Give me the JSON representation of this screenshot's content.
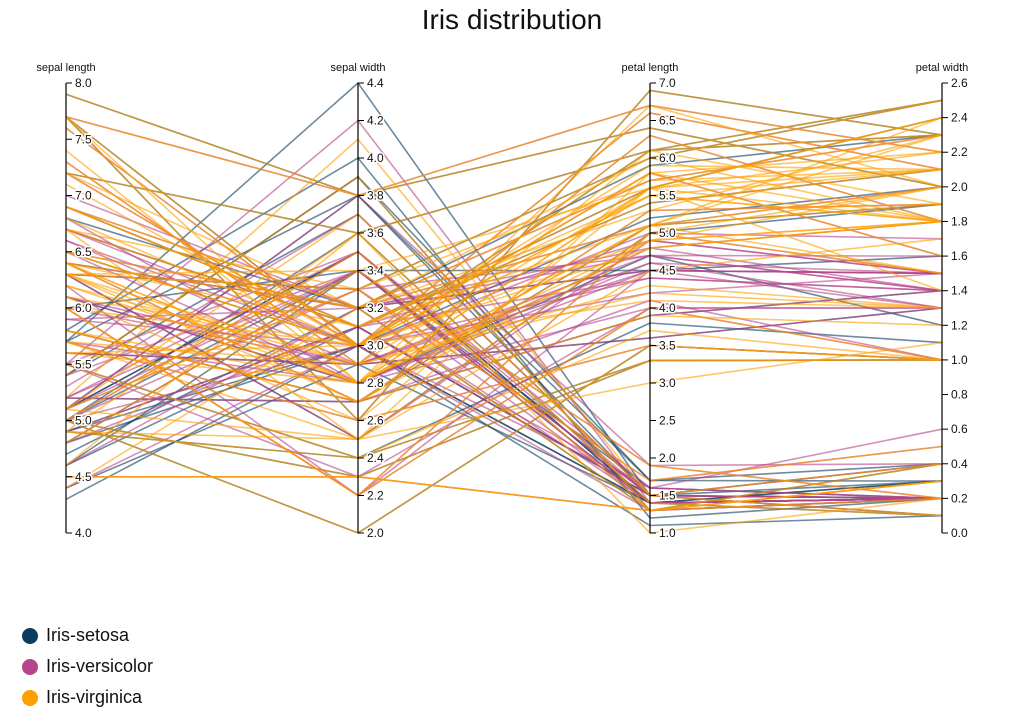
{
  "chart_data": {
    "type": "parallel-coordinates",
    "title": "Iris distribution",
    "axes": [
      {
        "key": "sepal_length",
        "label": "sepal length",
        "range": [
          4.0,
          8.0
        ],
        "ticks": [
          4.0,
          4.5,
          5.0,
          5.5,
          6.0,
          6.5,
          7.0,
          7.5,
          8.0
        ]
      },
      {
        "key": "sepal_width",
        "label": "sepal width",
        "range": [
          2.0,
          4.4
        ],
        "ticks": [
          2.0,
          2.2,
          2.4,
          2.6,
          2.8,
          3.0,
          3.2,
          3.4,
          3.6,
          3.8,
          4.0,
          4.2,
          4.4
        ]
      },
      {
        "key": "petal_length",
        "label": "petal length",
        "range": [
          1.0,
          7.0
        ],
        "ticks": [
          1.0,
          1.5,
          2.0,
          2.5,
          3.0,
          3.5,
          4.0,
          4.5,
          5.0,
          5.5,
          6.0,
          6.5,
          7.0
        ]
      },
      {
        "key": "petal_width",
        "label": "petal width",
        "range": [
          0.0,
          2.6
        ],
        "ticks": [
          0.0,
          0.2,
          0.4,
          0.6,
          0.8,
          1.0,
          1.2,
          1.4,
          1.6,
          1.8,
          2.0,
          2.2,
          2.4,
          2.6
        ]
      }
    ],
    "series": [
      {
        "name": "Iris-setosa",
        "color": "#0b3c5d",
        "values": [
          [
            5.1,
            3.5,
            1.4,
            0.2
          ],
          [
            4.9,
            3.0,
            1.4,
            0.2
          ],
          [
            4.7,
            3.2,
            1.3,
            0.2
          ],
          [
            4.6,
            3.1,
            1.5,
            0.2
          ],
          [
            5.0,
            3.6,
            1.4,
            0.2
          ],
          [
            5.4,
            3.9,
            1.7,
            0.4
          ],
          [
            4.6,
            3.4,
            1.4,
            0.3
          ],
          [
            5.0,
            3.4,
            1.5,
            0.2
          ],
          [
            4.4,
            2.9,
            1.4,
            0.2
          ],
          [
            4.9,
            3.1,
            1.5,
            0.1
          ],
          [
            5.4,
            3.7,
            1.5,
            0.2
          ],
          [
            4.8,
            3.4,
            1.6,
            0.2
          ],
          [
            4.8,
            3.0,
            1.4,
            0.1
          ],
          [
            4.3,
            3.0,
            1.1,
            0.1
          ],
          [
            5.8,
            4.0,
            1.2,
            0.2
          ],
          [
            5.7,
            4.4,
            1.5,
            0.4
          ],
          [
            5.4,
            3.9,
            1.3,
            0.4
          ],
          [
            5.1,
            3.5,
            1.4,
            0.3
          ],
          [
            5.7,
            3.8,
            1.7,
            0.3
          ],
          [
            5.1,
            3.8,
            1.5,
            0.3
          ],
          [
            7.9,
            3.8,
            6.4,
            2.0
          ],
          [
            7.7,
            2.6,
            6.9,
            2.3
          ],
          [
            6.3,
            3.3,
            6.0,
            2.5
          ],
          [
            7.2,
            3.6,
            6.1,
            2.5
          ],
          [
            6.7,
            3.1,
            5.6,
            2.4
          ],
          [
            5.6,
            2.9,
            3.6,
            1.3
          ],
          [
            5.0,
            2.0,
            3.5,
            1.0
          ],
          [
            6.1,
            2.8,
            4.7,
            1.2
          ],
          [
            5.5,
            2.4,
            3.8,
            1.1
          ],
          [
            6.0,
            3.4,
            4.5,
            1.6
          ],
          [
            4.9,
            2.4,
            3.3,
            1.0
          ],
          [
            6.9,
            3.1,
            5.4,
            2.1
          ],
          [
            5.8,
            2.7,
            5.1,
            1.9
          ],
          [
            6.4,
            3.2,
            4.5,
            1.5
          ],
          [
            5.0,
            2.3,
            3.3,
            1.0
          ],
          [
            7.7,
            3.0,
            6.1,
            2.3
          ],
          [
            6.8,
            3.2,
            5.9,
            2.3
          ],
          [
            6.5,
            3.0,
            5.2,
            2.0
          ],
          [
            5.2,
            2.7,
            3.9,
            1.4
          ],
          [
            6.3,
            2.5,
            5.0,
            1.9
          ]
        ]
      },
      {
        "name": "Iris-versicolor",
        "color": "#b5468b",
        "values": [
          [
            7.0,
            3.2,
            4.7,
            1.4
          ],
          [
            6.4,
            3.2,
            4.5,
            1.5
          ],
          [
            6.9,
            3.1,
            4.9,
            1.5
          ],
          [
            5.5,
            2.3,
            4.0,
            1.3
          ],
          [
            6.5,
            2.8,
            4.6,
            1.5
          ],
          [
            5.7,
            2.8,
            4.5,
            1.3
          ],
          [
            6.3,
            3.3,
            4.7,
            1.6
          ],
          [
            6.6,
            2.9,
            4.6,
            1.3
          ],
          [
            5.2,
            2.7,
            3.9,
            1.4
          ],
          [
            5.9,
            3.0,
            4.2,
            1.5
          ],
          [
            6.0,
            2.2,
            4.0,
            1.0
          ],
          [
            6.1,
            2.9,
            4.7,
            1.4
          ],
          [
            5.6,
            2.9,
            3.6,
            1.3
          ],
          [
            6.7,
            3.1,
            4.4,
            1.4
          ],
          [
            5.8,
            2.7,
            4.1,
            1.0
          ],
          [
            6.2,
            2.2,
            4.5,
            1.5
          ],
          [
            5.9,
            3.2,
            4.8,
            1.8
          ],
          [
            6.1,
            2.8,
            4.0,
            1.3
          ],
          [
            6.3,
            2.5,
            4.9,
            1.5
          ],
          [
            6.6,
            3.0,
            4.4,
            1.4
          ],
          [
            6.8,
            2.8,
            4.8,
            1.4
          ],
          [
            6.7,
            3.0,
            5.0,
            1.7
          ],
          [
            6.0,
            2.9,
            4.5,
            1.5
          ],
          [
            5.7,
            2.6,
            3.5,
            1.0
          ],
          [
            7.6,
            3.0,
            6.6,
            2.1
          ],
          [
            7.3,
            2.9,
            6.3,
            1.8
          ],
          [
            6.5,
            3.2,
            5.1,
            2.0
          ],
          [
            6.4,
            2.7,
            5.3,
            1.9
          ],
          [
            7.7,
            3.8,
            6.7,
            2.2
          ],
          [
            6.0,
            2.2,
            5.0,
            1.5
          ],
          [
            5.1,
            3.3,
            1.7,
            0.5
          ],
          [
            4.8,
            3.4,
            1.9,
            0.2
          ],
          [
            5.0,
            3.0,
            1.6,
            0.2
          ],
          [
            5.2,
            3.5,
            1.5,
            0.2
          ],
          [
            5.2,
            3.4,
            1.4,
            0.2
          ],
          [
            4.5,
            2.3,
            1.3,
            0.3
          ],
          [
            5.5,
            4.2,
            1.4,
            0.2
          ],
          [
            5.0,
            3.5,
            1.6,
            0.6
          ],
          [
            5.1,
            3.8,
            1.9,
            0.4
          ],
          [
            4.6,
            3.2,
            1.4,
            0.2
          ],
          [
            5.3,
            3.7,
            1.5,
            0.2
          ],
          [
            5.0,
            3.3,
            1.4,
            0.2
          ],
          [
            4.8,
            3.1,
            1.6,
            0.2
          ],
          [
            5.4,
            3.4,
            1.5,
            0.4
          ],
          [
            5.5,
            3.5,
            1.3,
            0.2
          ],
          [
            4.4,
            3.0,
            1.3,
            0.2
          ],
          [
            5.1,
            3.4,
            1.5,
            0.2
          ],
          [
            4.9,
            3.1,
            1.5,
            0.1
          ],
          [
            7.2,
            3.0,
            5.8,
            1.6
          ],
          [
            6.9,
            3.2,
            5.7,
            2.3
          ]
        ]
      },
      {
        "name": "Iris-virginica",
        "color": "#ffa000",
        "values": [
          [
            6.3,
            3.3,
            6.0,
            2.5
          ],
          [
            5.8,
            2.7,
            5.1,
            1.9
          ],
          [
            7.1,
            3.0,
            5.9,
            2.1
          ],
          [
            6.3,
            2.9,
            5.6,
            1.8
          ],
          [
            6.5,
            3.0,
            5.8,
            2.2
          ],
          [
            7.6,
            3.0,
            6.6,
            2.1
          ],
          [
            4.9,
            2.5,
            4.5,
            1.7
          ],
          [
            7.3,
            2.9,
            6.3,
            1.8
          ],
          [
            6.7,
            2.5,
            5.8,
            1.8
          ],
          [
            7.2,
            3.6,
            6.1,
            2.5
          ],
          [
            6.5,
            3.2,
            5.1,
            2.0
          ],
          [
            6.4,
            2.7,
            5.3,
            1.9
          ],
          [
            6.8,
            3.0,
            5.5,
            2.1
          ],
          [
            5.7,
            2.5,
            5.0,
            2.0
          ],
          [
            5.8,
            2.8,
            5.1,
            2.4
          ],
          [
            6.4,
            3.2,
            5.3,
            2.3
          ],
          [
            6.5,
            3.0,
            5.5,
            1.8
          ],
          [
            7.7,
            3.8,
            6.7,
            2.2
          ],
          [
            7.7,
            2.6,
            6.9,
            2.3
          ],
          [
            6.0,
            2.2,
            5.0,
            1.5
          ],
          [
            6.9,
            3.2,
            5.7,
            2.3
          ],
          [
            5.6,
            2.8,
            4.9,
            2.0
          ],
          [
            7.7,
            2.8,
            6.7,
            2.0
          ],
          [
            6.3,
            2.7,
            4.9,
            1.8
          ],
          [
            6.7,
            3.3,
            5.7,
            2.1
          ],
          [
            7.2,
            3.2,
            6.0,
            1.8
          ],
          [
            6.2,
            2.8,
            4.8,
            1.8
          ],
          [
            6.1,
            3.0,
            4.9,
            1.8
          ],
          [
            6.4,
            2.8,
            5.6,
            2.1
          ],
          [
            7.2,
            3.0,
            5.8,
            1.6
          ],
          [
            7.4,
            2.8,
            6.1,
            1.9
          ],
          [
            7.9,
            3.8,
            6.4,
            2.0
          ],
          [
            6.4,
            2.8,
            5.6,
            2.2
          ],
          [
            6.3,
            2.8,
            5.1,
            1.5
          ],
          [
            6.1,
            2.6,
            5.6,
            1.4
          ],
          [
            4.5,
            2.3,
            1.3,
            0.3
          ],
          [
            5.0,
            3.5,
            1.3,
            0.3
          ],
          [
            4.4,
            3.2,
            1.3,
            0.2
          ],
          [
            5.4,
            3.9,
            1.3,
            0.4
          ],
          [
            5.1,
            3.7,
            1.5,
            0.4
          ],
          [
            4.6,
            3.6,
            1.0,
            0.2
          ],
          [
            5.1,
            3.3,
            1.7,
            0.5
          ],
          [
            4.8,
            3.4,
            1.9,
            0.2
          ],
          [
            5.2,
            4.1,
            1.5,
            0.1
          ],
          [
            4.9,
            3.6,
            1.4,
            0.1
          ],
          [
            5.0,
            2.3,
            3.3,
            1.0
          ],
          [
            4.9,
            2.4,
            3.3,
            1.0
          ],
          [
            5.7,
            2.6,
            3.5,
            1.0
          ],
          [
            6.0,
            2.2,
            4.0,
            1.0
          ],
          [
            5.5,
            2.4,
            3.7,
            1.0
          ],
          [
            5.8,
            2.7,
            3.9,
            1.2
          ],
          [
            5.0,
            2.0,
            3.5,
            1.0
          ],
          [
            5.6,
            3.0,
            4.1,
            1.3
          ],
          [
            5.7,
            2.9,
            4.2,
            1.3
          ],
          [
            6.2,
            2.9,
            4.3,
            1.3
          ],
          [
            5.1,
            2.5,
            3.0,
            1.1
          ],
          [
            4.5,
            2.3,
            1.3,
            0.3
          ],
          [
            7.7,
            3.0,
            6.1,
            2.3
          ],
          [
            6.3,
            3.4,
            5.6,
            2.4
          ],
          [
            6.4,
            3.1,
            5.5,
            1.8
          ],
          [
            6.0,
            3.0,
            4.8,
            1.8
          ],
          [
            6.9,
            3.1,
            5.4,
            2.1
          ],
          [
            6.7,
            3.1,
            5.6,
            2.4
          ],
          [
            6.9,
            3.1,
            5.1,
            2.3
          ]
        ]
      }
    ]
  }
}
